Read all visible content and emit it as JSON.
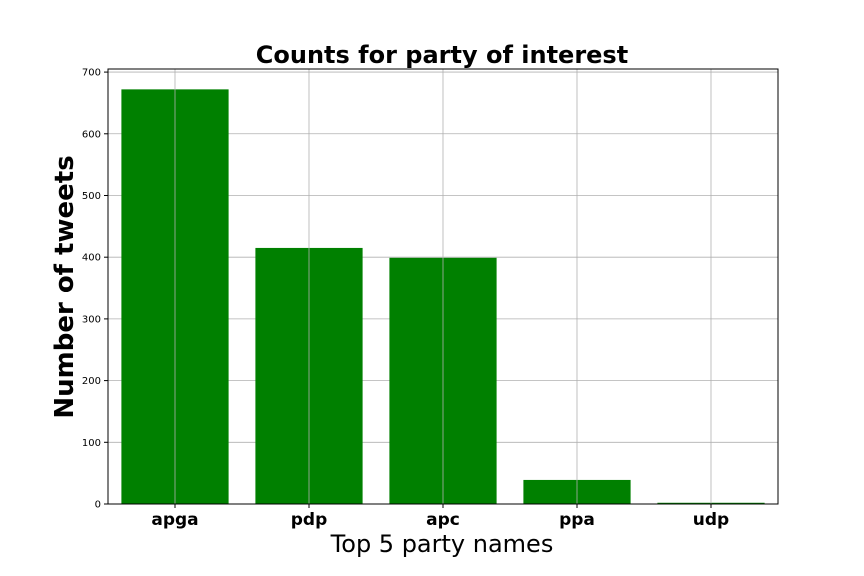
{
  "chart_data": {
    "type": "bar",
    "title": "Counts for party of interest",
    "xlabel": "Top 5 party names",
    "ylabel": "Number of tweets",
    "categories": [
      "apga",
      "pdp",
      "apc",
      "ppa",
      "udp"
    ],
    "values": [
      672,
      415,
      399,
      39,
      2
    ],
    "ylim": [
      0,
      705
    ],
    "yticks": [
      0,
      100,
      200,
      300,
      400,
      500,
      600,
      700
    ],
    "grid": true,
    "bar_color": "#008000",
    "grid_color": "#b0b0b0"
  }
}
